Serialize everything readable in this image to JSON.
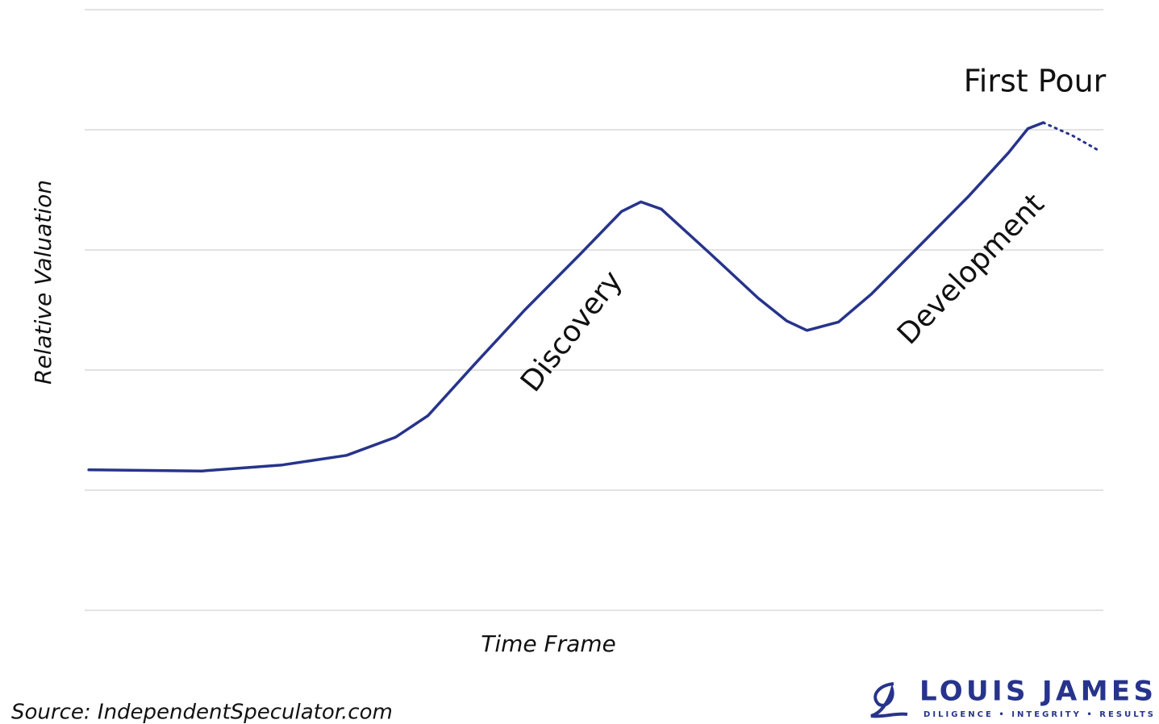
{
  "chart_data": {
    "type": "line",
    "xlabel": "Time Frame",
    "ylabel": "Relative Valuation",
    "x": [
      0.4,
      11.5,
      19.4,
      25.7,
      30.5,
      33.7,
      38.4,
      43.2,
      48.7,
      52.7,
      54.6,
      56.6,
      61.4,
      66.1,
      68.9,
      70.9,
      74.0,
      77.2,
      81.9,
      86.7,
      90.7,
      92.6,
      94.1,
      97.0,
      99.5
    ],
    "series": [
      {
        "color": "#27348b",
        "style": "solid",
        "values": [
          1.17,
          1.16,
          1.21,
          1.29,
          1.44,
          1.62,
          2.06,
          2.5,
          2.97,
          3.32,
          3.4,
          3.34,
          2.97,
          2.6,
          2.41,
          2.33,
          2.4,
          2.63,
          3.03,
          3.44,
          3.81,
          4.01,
          4.06,
          null,
          null
        ]
      },
      {
        "color": "#27348b",
        "style": "dotted",
        "values": [
          null,
          null,
          null,
          null,
          null,
          null,
          null,
          null,
          null,
          null,
          null,
          null,
          null,
          null,
          null,
          null,
          null,
          null,
          null,
          null,
          null,
          null,
          4.06,
          3.95,
          3.83
        ]
      }
    ],
    "xlim": [
      0,
      100
    ],
    "ylim": [
      0,
      5
    ],
    "yticks": [
      0,
      1,
      2,
      3,
      4,
      5
    ],
    "grid": true,
    "annotations": [
      "First Pour",
      "Discovery",
      "Development"
    ],
    "source": "Source: IndependentSpeculator.com",
    "brand": {
      "name": "LOUIS JAMES",
      "tagline": "DILIGENCE  •  INTEGRITY  •  RESULTS"
    }
  }
}
